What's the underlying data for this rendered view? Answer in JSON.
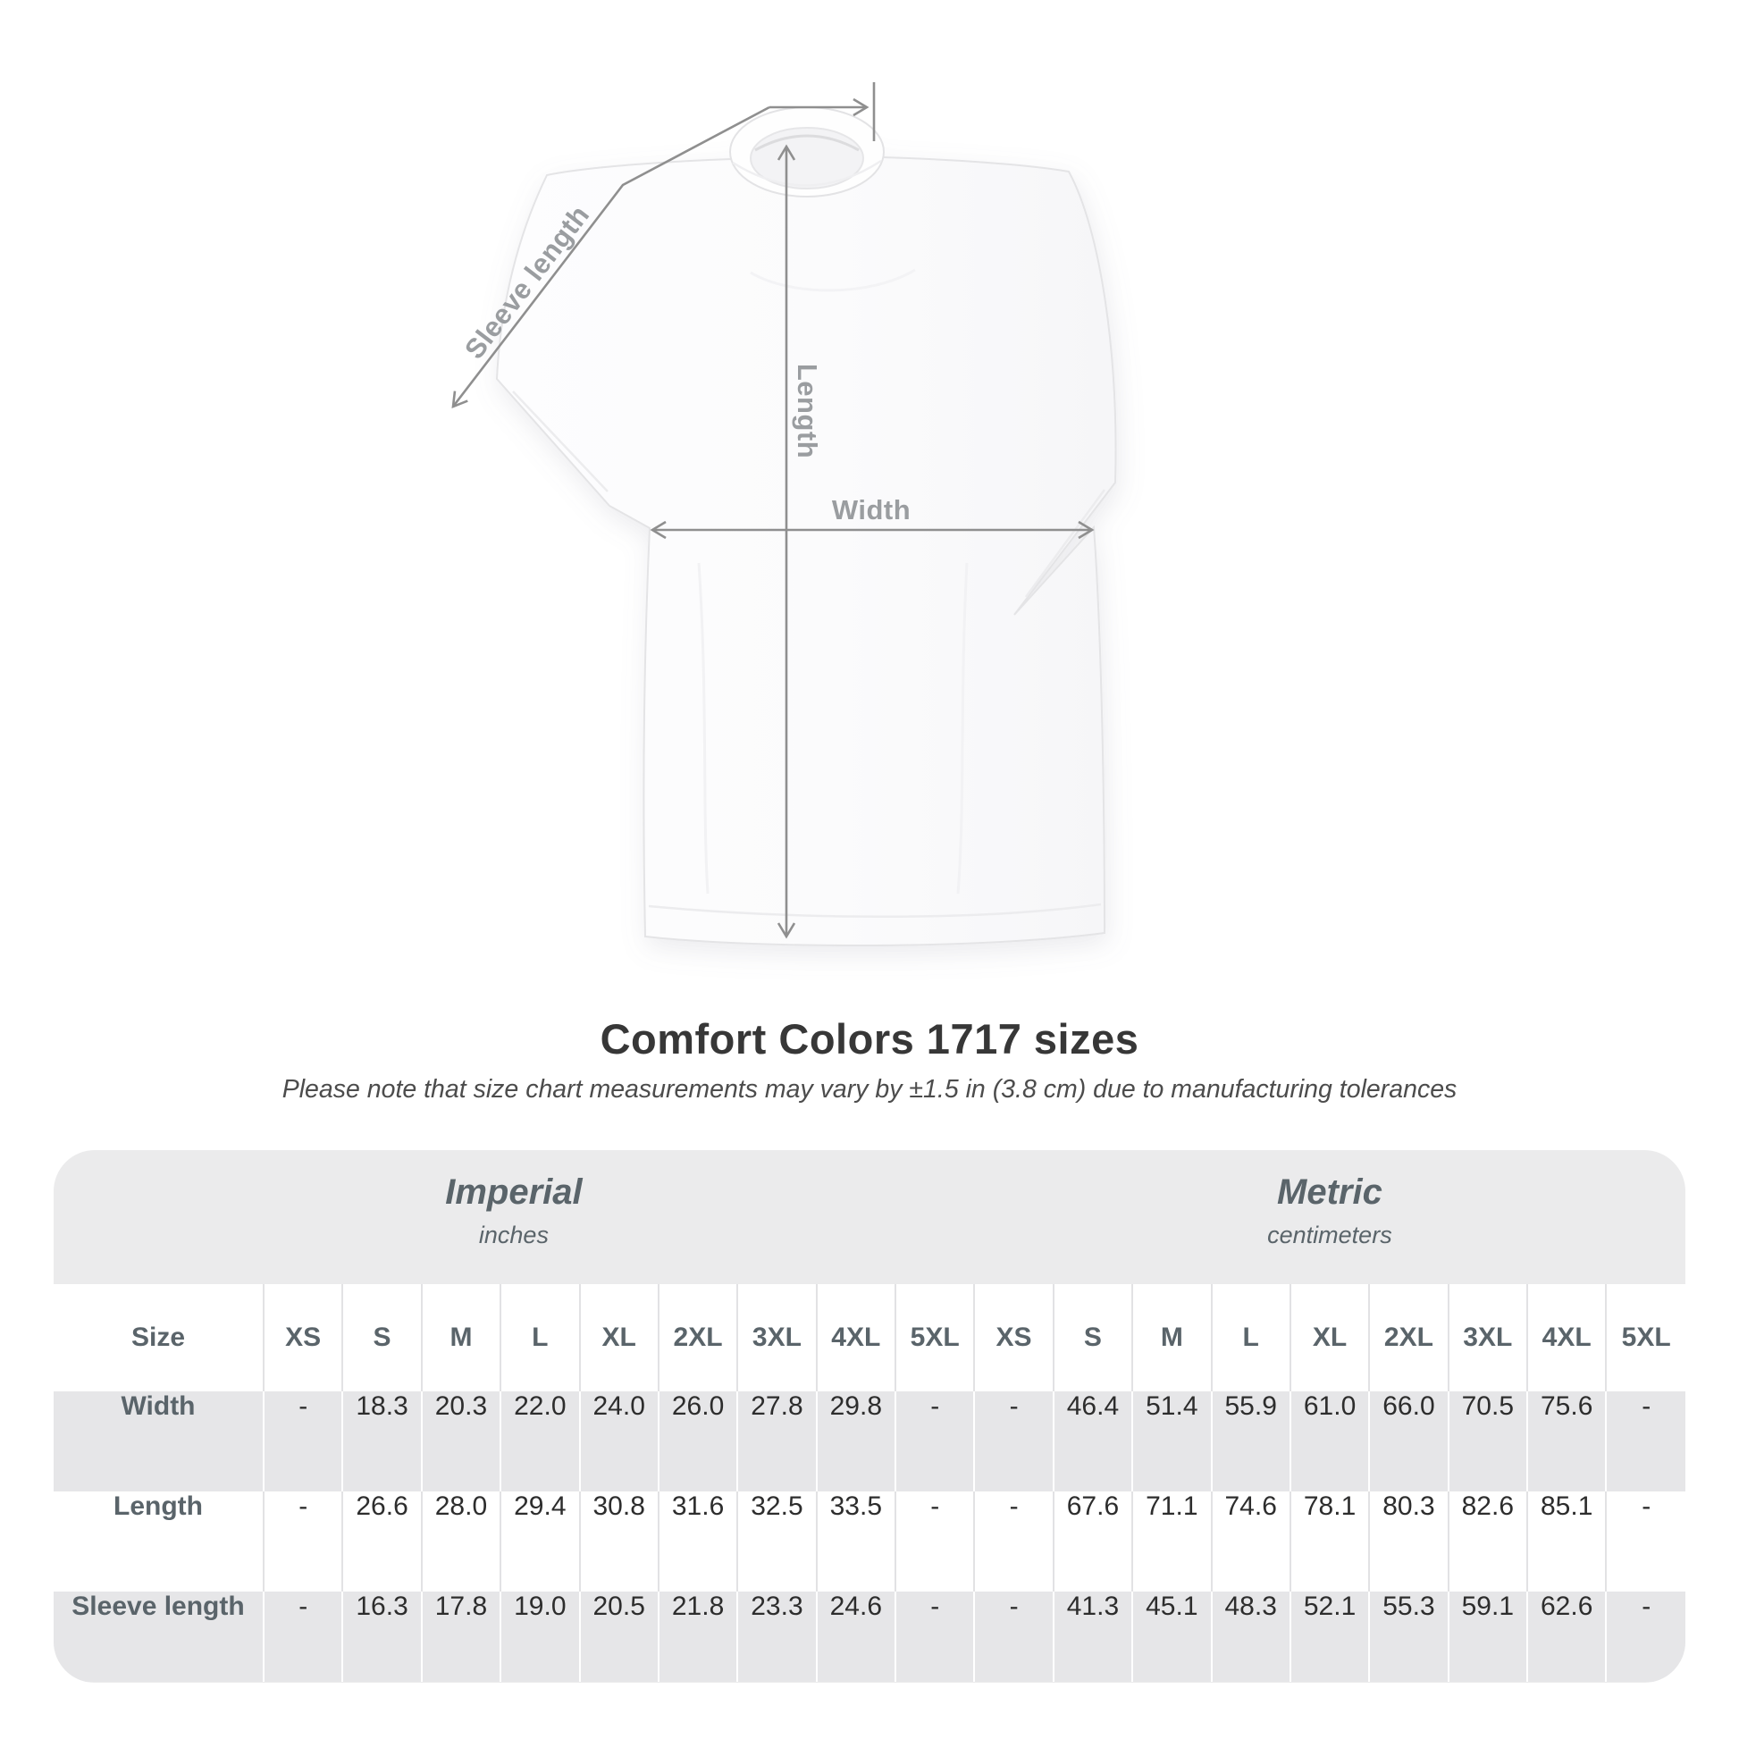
{
  "diagram": {
    "sleeve_length_label": "Sleeve length",
    "length_label": "Length",
    "width_label": "Width"
  },
  "heading": {
    "title": "Comfort Colors 1717 sizes",
    "subtitle": "Please note that size chart measurements may vary by ±1.5 in (3.8 cm) due to manufacturing tolerances"
  },
  "table": {
    "unit_groups": [
      {
        "title": "Imperial",
        "subtitle": "inches"
      },
      {
        "title": "Metric",
        "subtitle": "centimeters"
      }
    ],
    "size_label": "Size",
    "sizes": [
      "XS",
      "S",
      "M",
      "L",
      "XL",
      "2XL",
      "3XL",
      "4XL",
      "5XL"
    ],
    "rows": [
      {
        "label": "Width",
        "imperial": [
          "-",
          "18.3",
          "20.3",
          "22.0",
          "24.0",
          "26.0",
          "27.8",
          "29.8",
          "-"
        ],
        "metric": [
          "-",
          "46.4",
          "51.4",
          "55.9",
          "61.0",
          "66.0",
          "70.5",
          "75.6",
          "-"
        ]
      },
      {
        "label": "Length",
        "imperial": [
          "-",
          "26.6",
          "28.0",
          "29.4",
          "30.8",
          "31.6",
          "32.5",
          "33.5",
          "-"
        ],
        "metric": [
          "-",
          "67.6",
          "71.1",
          "74.6",
          "78.1",
          "80.3",
          "82.6",
          "85.1",
          "-"
        ]
      },
      {
        "label": "Sleeve length",
        "imperial": [
          "-",
          "16.3",
          "17.8",
          "19.0",
          "20.5",
          "21.8",
          "23.3",
          "24.6",
          "-"
        ],
        "metric": [
          "-",
          "41.3",
          "45.1",
          "48.3",
          "52.1",
          "55.3",
          "59.1",
          "62.6",
          "-"
        ]
      }
    ]
  },
  "colors": {
    "arrow_gray": "#8f8f8f",
    "diagram_label_gray": "#9a9da0",
    "table_label_slate": "#5a646a",
    "value_dark": "#2d2d2d",
    "panel_bg": "#ebebec",
    "alt_row_bg": "#e6e6e8"
  }
}
